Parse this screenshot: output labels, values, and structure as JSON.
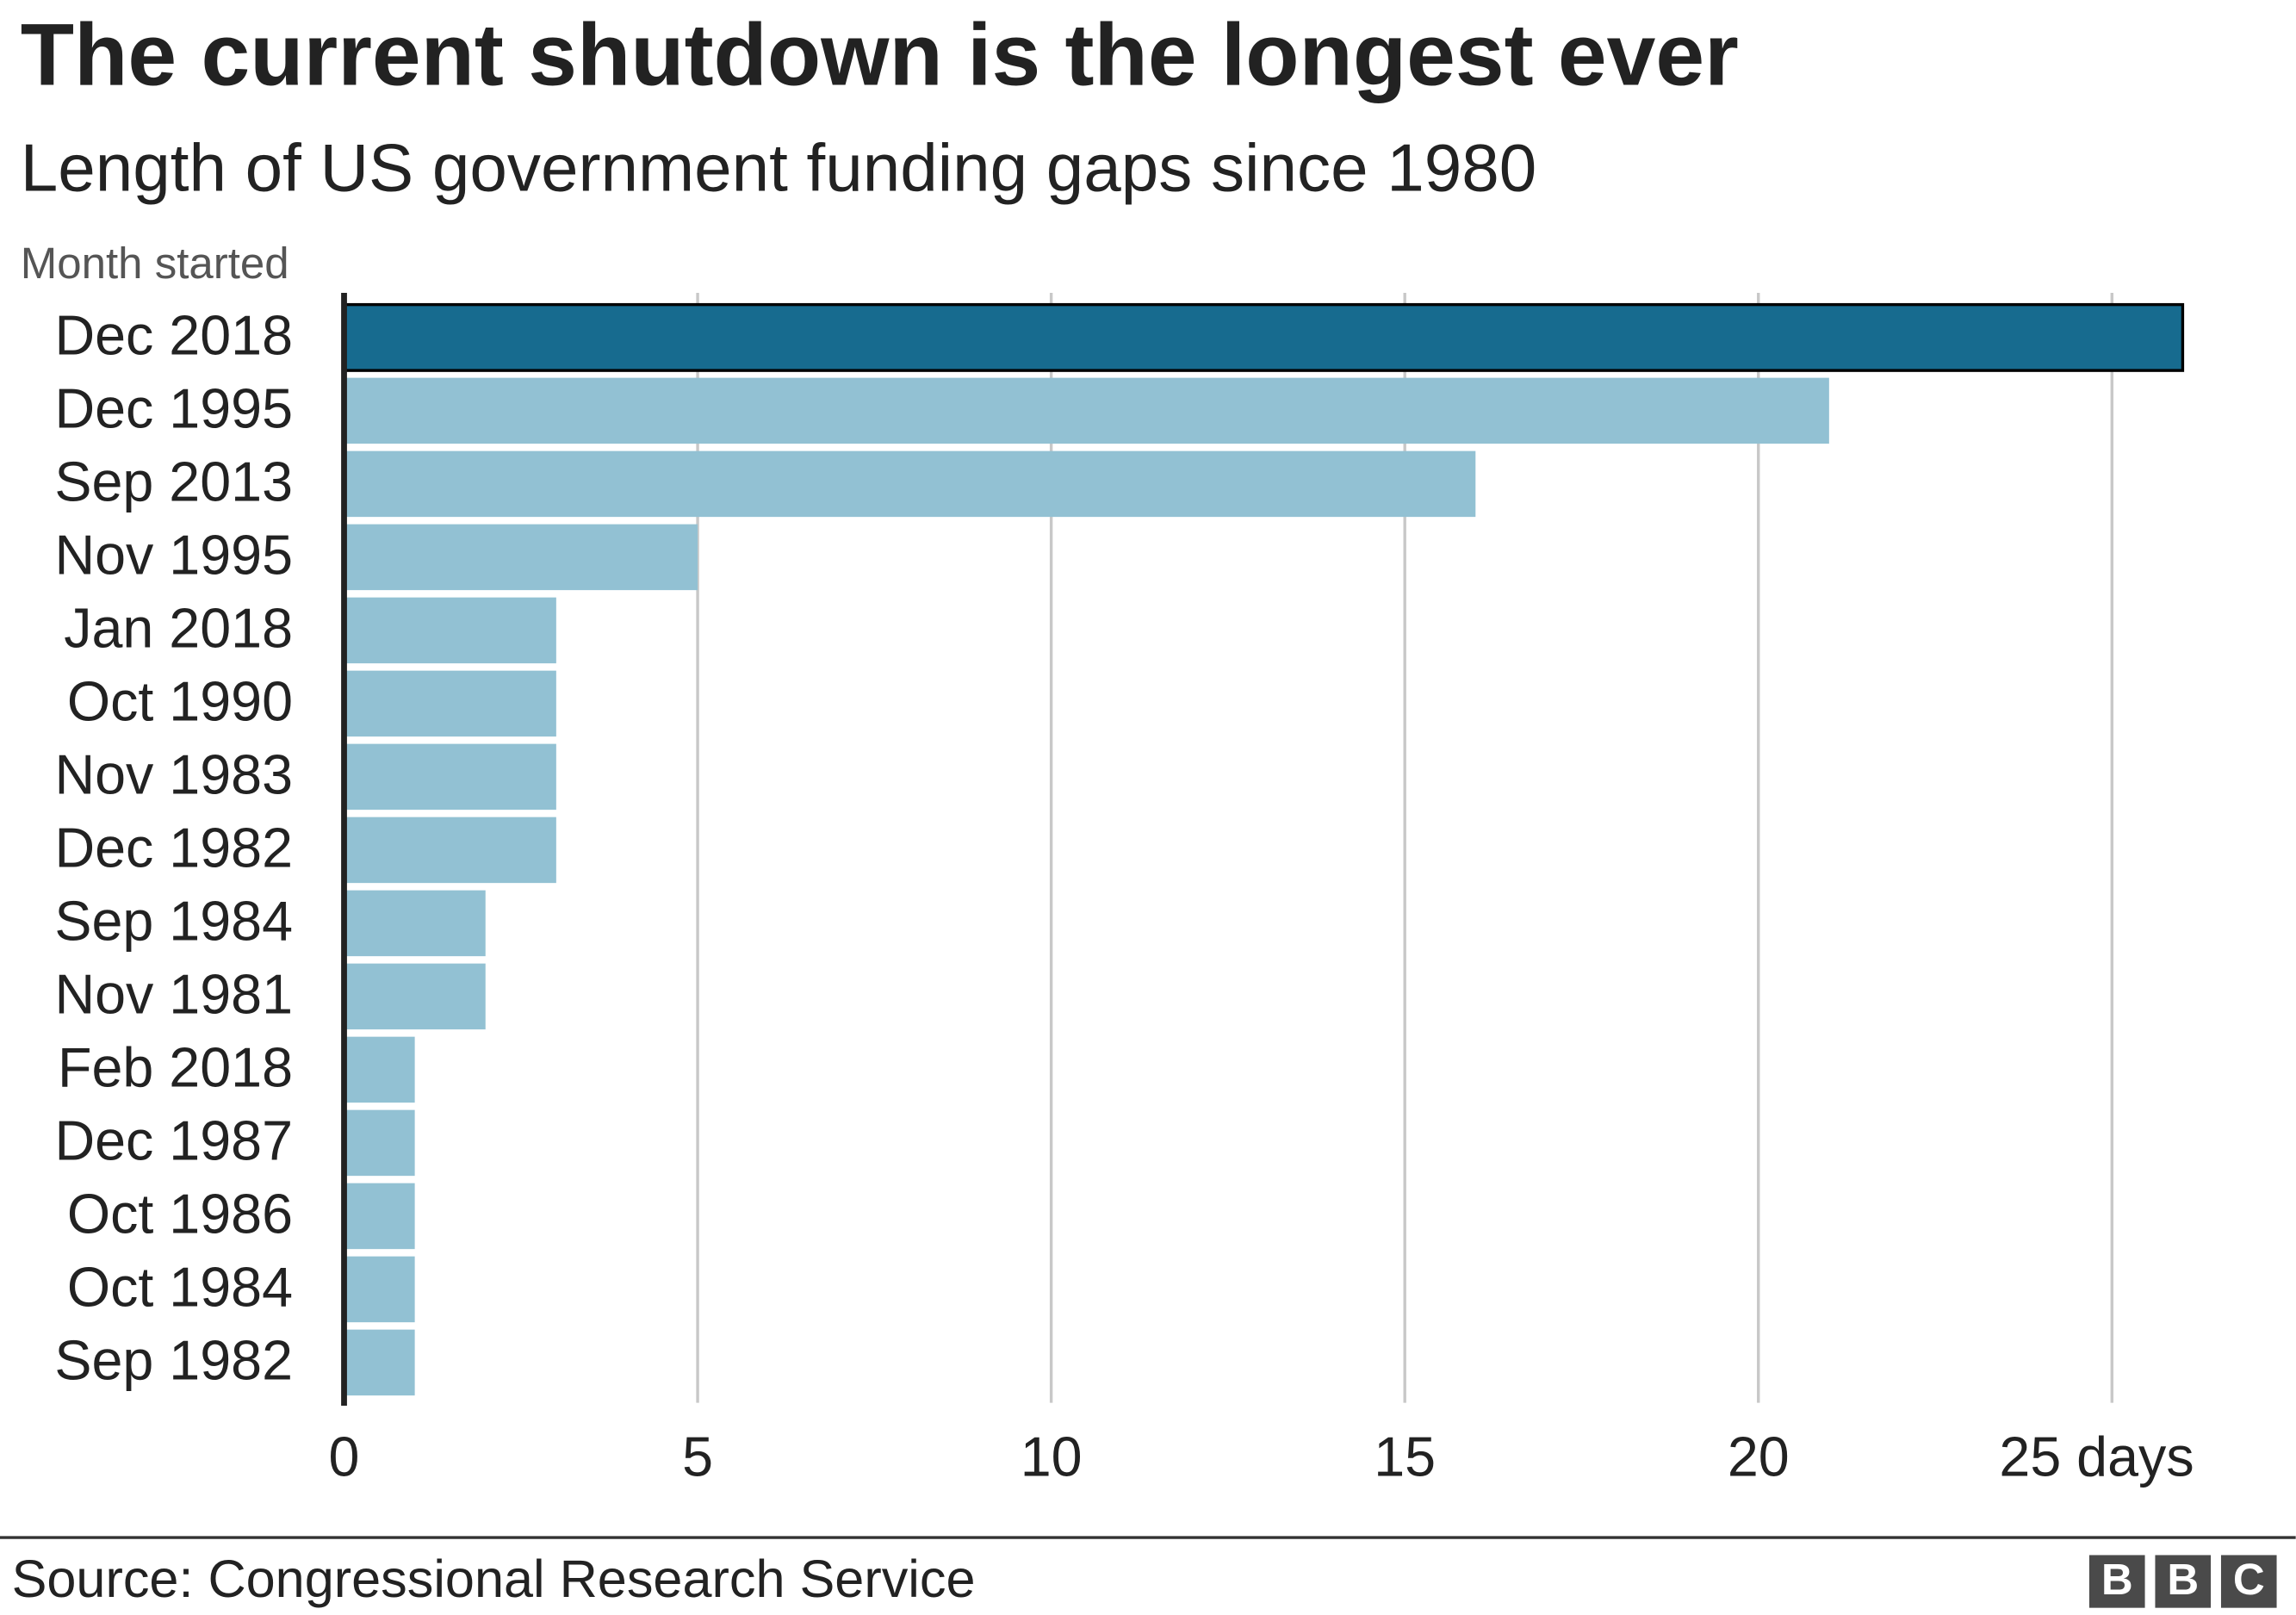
{
  "chart_data": {
    "type": "bar",
    "orientation": "horizontal",
    "title": "The current shutdown is the longest ever",
    "subtitle": "Length of US government funding gaps since 1980",
    "y_axis_label": "Month started",
    "categories": [
      "Dec 2018",
      "Dec 1995",
      "Sep 2013",
      "Nov 1995",
      "Jan 2018",
      "Oct 1990",
      "Nov 1983",
      "Dec 1982",
      "Sep 1984",
      "Nov 1981",
      "Feb 2018",
      "Dec 1987",
      "Oct 1986",
      "Oct 1984",
      "Sep 1982"
    ],
    "values": [
      26,
      21,
      16,
      5,
      3,
      3,
      3,
      3,
      2,
      2,
      1,
      1,
      1,
      1,
      1
    ],
    "colors": [
      "#176b8f",
      "#92c1d3",
      "#92c1d3",
      "#92c1d3",
      "#92c1d3",
      "#92c1d3",
      "#92c1d3",
      "#92c1d3",
      "#92c1d3",
      "#92c1d3",
      "#92c1d3",
      "#92c1d3",
      "#92c1d3",
      "#92c1d3",
      "#92c1d3"
    ],
    "xlim": [
      0,
      27.5
    ],
    "xticks": [
      0,
      5,
      10,
      15,
      20,
      {
        "value": 25,
        "label": "25 days"
      }
    ],
    "grid": true,
    "source": "Source: Congressional Research Service",
    "logo": [
      "B",
      "B",
      "C"
    ]
  }
}
